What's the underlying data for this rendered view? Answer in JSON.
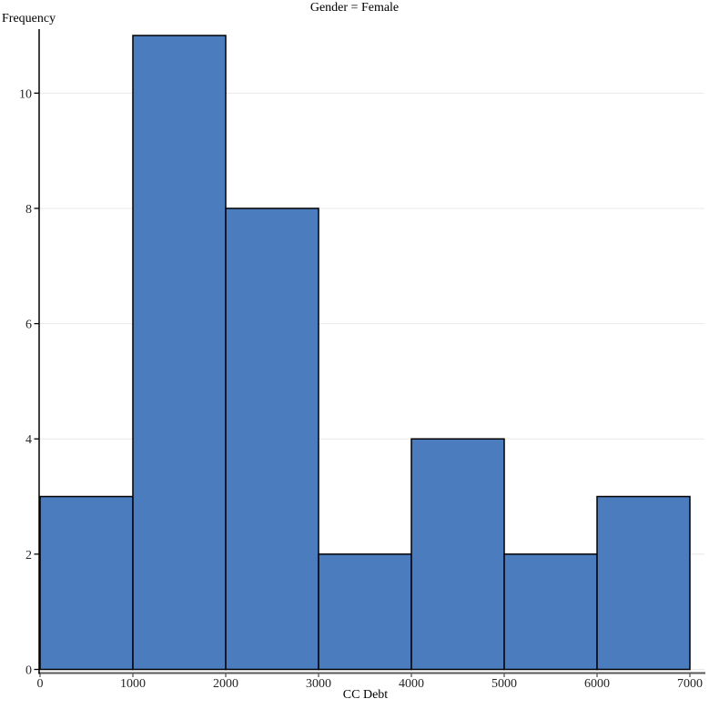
{
  "chart_data": {
    "type": "bar",
    "subtype": "histogram",
    "title": "Gender = Female",
    "xlabel": "CC Debt",
    "ylabel": "Frequency",
    "bin_edges": [
      0,
      1000,
      2000,
      3000,
      4000,
      5000,
      6000,
      7000
    ],
    "frequencies": [
      3,
      11,
      8,
      2,
      4,
      2,
      3
    ],
    "xlim": [
      0,
      7000
    ],
    "ylim": [
      0,
      11
    ],
    "x_ticks": [
      0,
      1000,
      2000,
      3000,
      4000,
      5000,
      6000,
      7000
    ],
    "y_ticks": [
      0,
      2,
      4,
      6,
      8,
      10
    ],
    "grid": "horizontal",
    "legend": "none",
    "colors": {
      "bar_fill": "#4a7cbe",
      "bar_stroke": "#000000",
      "grid_line": "#e8e8e8",
      "axis_line": "#595959",
      "tick_text": "#262626",
      "background": "#ffffff"
    }
  }
}
